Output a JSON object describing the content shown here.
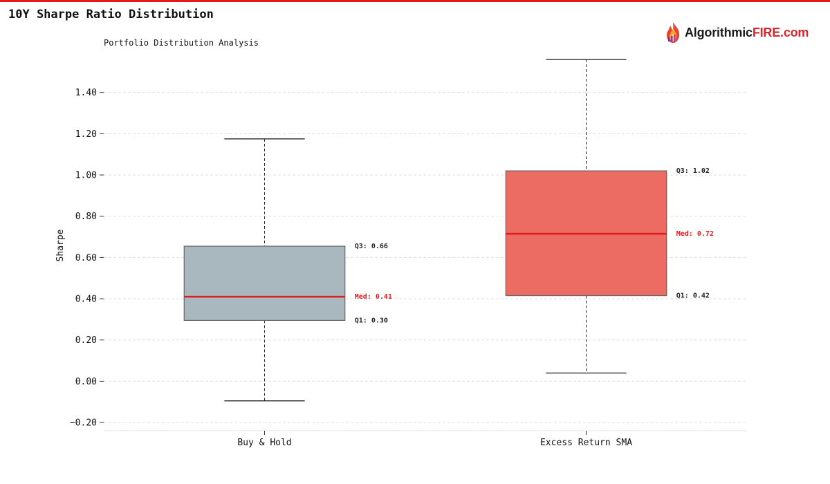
{
  "header": {
    "title": "10Y Sharpe Ratio Distribution",
    "subtitle": "Portfolio Distribution Analysis"
  },
  "logo": {
    "icon": "flame-icon",
    "text_dark": "Algorithmic",
    "text_red": "FIRE.com"
  },
  "colors": {
    "accent": "#e31a1c",
    "median": "#e31a1c",
    "box_buy_hold": "#a9b7be",
    "box_excess": "#ec6b63",
    "whisker": "#222222",
    "grid": "#dddddd"
  },
  "chart_data": {
    "type": "box",
    "title": "10Y Sharpe Ratio Distribution",
    "subtitle": "Portfolio Distribution Analysis",
    "xlabel": "",
    "ylabel": "Sharpe",
    "ylim": [
      -0.24,
      1.56
    ],
    "yticks": [
      -0.2,
      0.0,
      0.2,
      0.4,
      0.6,
      0.8,
      1.0,
      1.2,
      1.4
    ],
    "ytick_labels": [
      "−0.20",
      "0.00",
      "0.20",
      "0.40",
      "0.60",
      "0.80",
      "1.00",
      "1.20",
      "1.40"
    ],
    "grid": true,
    "categories": [
      "Buy & Hold",
      "Excess Return SMA"
    ],
    "boxes": [
      {
        "category": "Buy & Hold",
        "whisker_low": -0.095,
        "q1": 0.295,
        "median": 0.41,
        "q3": 0.655,
        "whisker_high": 1.175,
        "labels": {
          "q3": "Q3: 0.66",
          "median": "Med: 0.41",
          "q1": "Q1: 0.30"
        }
      },
      {
        "category": "Excess Return SMA",
        "whisker_low": 0.04,
        "q1": 0.415,
        "median": 0.715,
        "q3": 1.02,
        "whisker_high": 1.56,
        "labels": {
          "q3": "Q3: 1.02",
          "median": "Med: 0.72",
          "q1": "Q1: 0.42"
        }
      }
    ]
  }
}
